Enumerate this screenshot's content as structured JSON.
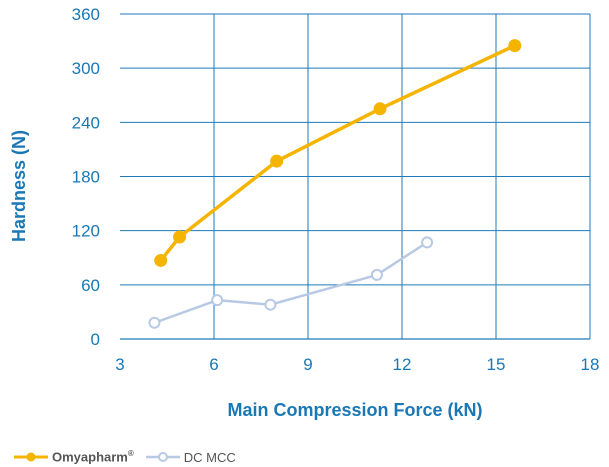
{
  "chart_data": {
    "type": "line",
    "xlabel": "Main Compression Force (kN)",
    "ylabel": "Hardness (N)",
    "xlim": [
      3,
      18
    ],
    "ylim": [
      0,
      360
    ],
    "xticks": [
      3,
      6,
      9,
      12,
      15,
      18
    ],
    "yticks": [
      0,
      60,
      120,
      180,
      240,
      300,
      360
    ],
    "grid": "vertical and horizontal",
    "legend_position": "bottom-left",
    "series": [
      {
        "name": "Omyapharm®",
        "color": "#f5b400",
        "marker": "filled-circle",
        "x": [
          4.3,
          4.9,
          8.0,
          11.3,
          15.6
        ],
        "y": [
          87,
          113,
          197,
          255,
          325
        ]
      },
      {
        "name": "DC MCC",
        "color": "#b8c9e4",
        "marker": "open-circle",
        "x": [
          4.1,
          6.1,
          7.8,
          11.2,
          12.8
        ],
        "y": [
          18,
          43,
          38,
          71,
          107
        ]
      }
    ]
  },
  "legend": {
    "items": [
      {
        "label": "Omyapharm",
        "sup": "®"
      },
      {
        "label": "DC MCC"
      }
    ]
  }
}
